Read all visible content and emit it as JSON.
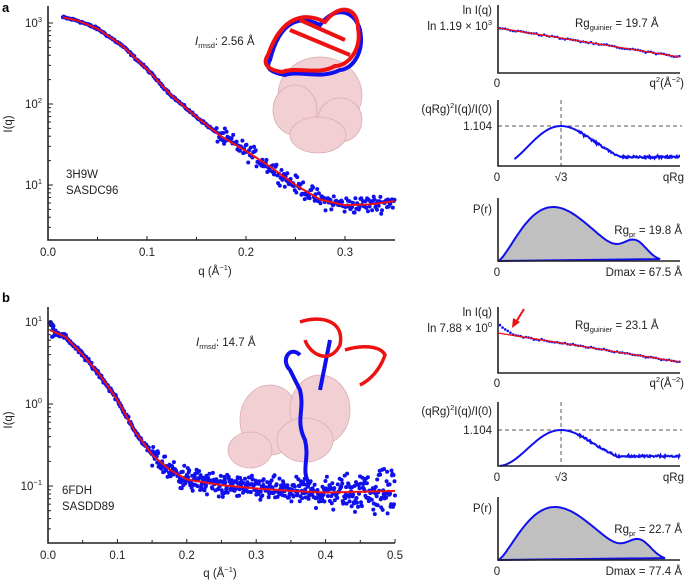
{
  "colors": {
    "data": "#1010ee",
    "fit": "#ee1111",
    "pr_fill": "#c0c0c0",
    "surface": "#f2cfd2"
  },
  "chart_data": [
    {
      "panel": "a",
      "type": "scatter",
      "scale_y": "log",
      "xlabel": "q (Å",
      "xlabel_exp": "−1",
      "xlabel_close": ")",
      "ylabel": "I(q)",
      "xlim": [
        0,
        0.35
      ],
      "ylim_log10": [
        0.32,
        3.2
      ],
      "xticks": [
        {
          "v": 0,
          "label": "0.0"
        },
        {
          "v": 0.1,
          "label": "0.1"
        },
        {
          "v": 0.2,
          "label": "0.2"
        },
        {
          "v": 0.3,
          "label": "0.3"
        }
      ],
      "yticks": [
        {
          "exp": 3,
          "base": "10",
          "label_exp": "3"
        },
        {
          "exp": 2,
          "base": "10",
          "label_exp": "2"
        },
        {
          "exp": 1,
          "base": "10",
          "label_exp": "1"
        }
      ],
      "fit_log10": [
        [
          0.015,
          3.07
        ],
        [
          0.03,
          3.03
        ],
        [
          0.05,
          2.93
        ],
        [
          0.075,
          2.72
        ],
        [
          0.1,
          2.43
        ],
        [
          0.125,
          2.1
        ],
        [
          0.15,
          1.84
        ],
        [
          0.175,
          1.6
        ],
        [
          0.2,
          1.42
        ],
        [
          0.225,
          1.22
        ],
        [
          0.25,
          1.0
        ],
        [
          0.275,
          0.82
        ],
        [
          0.3,
          0.75
        ],
        [
          0.325,
          0.76
        ],
        [
          0.35,
          0.8
        ]
      ],
      "data_q_range": [
        0.015,
        0.35
      ],
      "pdb": "3H9W",
      "sasbdb": "SASDC96",
      "rmsd_label": "I",
      "rmsd_sub": "rmsd",
      "rmsd_value": ": 2.56 Å"
    },
    {
      "panel": "b",
      "type": "scatter",
      "scale_y": "log",
      "xlabel": "q (Å",
      "xlabel_exp": "−1",
      "xlabel_close": ")",
      "ylabel": "I(q)",
      "xlim": [
        0,
        0.5
      ],
      "ylim_log10": [
        -1.7,
        1.2
      ],
      "xticks": [
        {
          "v": 0,
          "label": "0.0"
        },
        {
          "v": 0.1,
          "label": "0.1"
        },
        {
          "v": 0.2,
          "label": "0.2"
        },
        {
          "v": 0.3,
          "label": "0.3"
        },
        {
          "v": 0.4,
          "label": "0.4"
        },
        {
          "v": 0.5,
          "label": "0.5"
        }
      ],
      "yticks": [
        {
          "exp": 1,
          "base": "10",
          "label_exp": "1"
        },
        {
          "exp": 0,
          "base": "10",
          "label_exp": "0"
        },
        {
          "exp": -1,
          "base": "10",
          "label_exp": "−1"
        }
      ],
      "fit_log10": [
        [
          0.003,
          0.9
        ],
        [
          0.025,
          0.82
        ],
        [
          0.05,
          0.6
        ],
        [
          0.075,
          0.35
        ],
        [
          0.1,
          0.05
        ],
        [
          0.125,
          -0.33
        ],
        [
          0.15,
          -0.62
        ],
        [
          0.175,
          -0.8
        ],
        [
          0.2,
          -0.92
        ],
        [
          0.25,
          -0.99
        ],
        [
          0.3,
          -1.03
        ],
        [
          0.35,
          -1.06
        ],
        [
          0.4,
          -1.08
        ],
        [
          0.45,
          -1.07
        ],
        [
          0.5,
          -1.06
        ]
      ],
      "data_q_range": [
        0.003,
        0.5
      ],
      "pdb": "6FDH",
      "sasbdb": "SASDD89",
      "rmsd_label": "I",
      "rmsd_sub": "rmsd",
      "rmsd_value": ": 14.7 Å"
    }
  ],
  "insets": {
    "a": {
      "guinier": {
        "ylabel": "ln I(q)",
        "y0_label": "ln 1.19 × 10",
        "y0_exp": "3",
        "x0": "0",
        "xlabel": "q",
        "xlabel_sq": "2",
        "xlabel_unit": "(Å",
        "xlabel_exp": "−2",
        "xlabel_close": ")",
        "rg_prefix": "Rg",
        "rg_sub": "guinier",
        "rg_value": " = 19.7 Å"
      },
      "kratky": {
        "ylabel": "(qRg)",
        "ylabel_exp": "2",
        "ylabel_rest": "I(q)/I(0)",
        "peak_label": "1.104",
        "peak_value": 1.104,
        "x0": "0",
        "sqrt3": "√3",
        "xlabel": "qRg",
        "tail_level": 0.25
      },
      "pr": {
        "ylabel": "P(r)",
        "x0": "0",
        "rg_prefix": "Rg",
        "rg_sub": "pr",
        "rg_value": " = 19.8 Å",
        "dmax_label": "Dmax = 67.5 Å",
        "dmax": 67.5
      }
    },
    "b": {
      "guinier": {
        "ylabel": "ln I(q)",
        "y0_label": "ln 7.88 × 10",
        "y0_exp": "0",
        "x0": "0",
        "xlabel": "q",
        "xlabel_sq": "2",
        "xlabel_unit": "(Å",
        "xlabel_exp": "−2",
        "xlabel_close": ")",
        "rg_prefix": "Rg",
        "rg_sub": "guinier",
        "rg_value": " = 23.1 Å"
      },
      "kratky": {
        "ylabel": "(qRg)",
        "ylabel_exp": "2",
        "ylabel_rest": "I(q)/I(0)",
        "peak_label": "1.104",
        "peak_value": 1.104,
        "x0": "0",
        "sqrt3": "√3",
        "xlabel": "qRg",
        "tail_level": 0.3
      },
      "pr": {
        "ylabel": "P(r)",
        "x0": "0",
        "rg_prefix": "Rg",
        "rg_sub": "pr",
        "rg_value": " = 22.7 Å",
        "dmax_label": "Dmax = 77.4 Å",
        "dmax": 77.4
      }
    }
  },
  "panel_labels": {
    "a": "a",
    "b": "b"
  }
}
